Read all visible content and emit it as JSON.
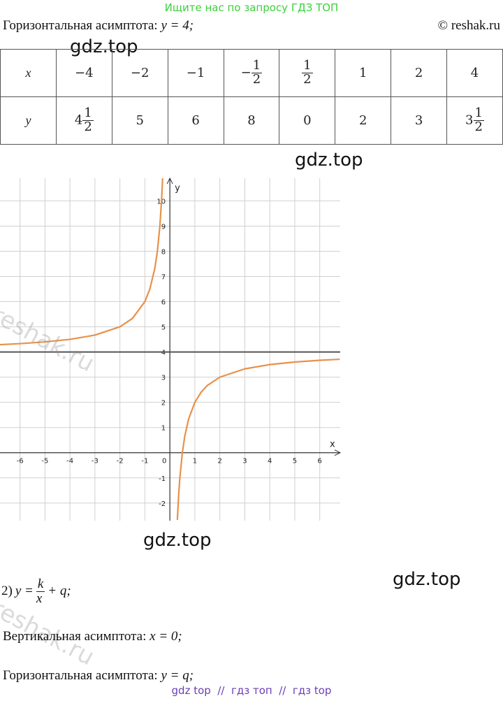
{
  "banner": "Ищите нас по запросу ГДЗ ТОП",
  "copyright": "© reshak.ru",
  "line1": {
    "label": "Горизонтальная асимптота:",
    "math": "y = 4;"
  },
  "watermarks": [
    "gdz.top",
    "gdz.top",
    "gdz.top",
    "gdz.top",
    "reshak.ru",
    "reshak.ru"
  ],
  "table": {
    "rows": [
      [
        "x",
        "−4",
        "−2",
        "−1",
        {
          "sign": "−",
          "num": "1",
          "den": "2"
        },
        {
          "num": "1",
          "den": "2"
        },
        "1",
        "2",
        "4"
      ],
      [
        "y",
        {
          "whole": "4",
          "num": "1",
          "den": "2"
        },
        "5",
        "6",
        "8",
        "0",
        "2",
        "3",
        {
          "whole": "3",
          "num": "1",
          "den": "2"
        }
      ]
    ]
  },
  "chart_data": {
    "type": "line",
    "xlabel": "x",
    "ylabel": "y",
    "x": [
      -6.8,
      -6,
      -5,
      -4,
      -3,
      -2,
      -1.5,
      -1,
      -0.8,
      -0.6,
      -0.5,
      -0.4,
      -0.33,
      -0.29,
      null,
      0.3,
      0.35,
      0.4,
      0.5,
      0.6,
      0.75,
      1,
      1.25,
      1.5,
      2,
      3,
      4,
      5,
      6,
      6.8
    ],
    "series": [
      {
        "color": "#e8914a",
        "values": [
          4.29,
          4.33,
          4.4,
          4.5,
          4.67,
          5,
          5.33,
          6,
          6.5,
          7.33,
          8,
          9,
          10.06,
          10.9,
          null,
          -2.67,
          -1.71,
          -1,
          0,
          0.67,
          1.33,
          2,
          2.4,
          2.67,
          3,
          3.33,
          3.5,
          3.6,
          3.67,
          3.71
        ]
      }
    ],
    "asymptote": 4,
    "xlim": [
      -6.8,
      6.82
    ],
    "ylim": [
      -2.7,
      10.9
    ],
    "xticks": [
      -6,
      -5,
      -4,
      -3,
      -2,
      -1,
      0,
      1,
      2,
      3,
      4,
      5,
      6
    ],
    "yticks": [
      -2,
      -1,
      1,
      2,
      3,
      4,
      5,
      6,
      7,
      8,
      9,
      10
    ],
    "grid": true
  },
  "item": {
    "number": "2)",
    "lhs": "y =",
    "num": "k",
    "den": "x",
    "rest": "+ q;"
  },
  "line2": {
    "label": "Вертикальная асимптота:",
    "math": "x = 0;"
  },
  "line3": {
    "label": "Горизонтальная асимптота:",
    "math": "y = q;"
  },
  "footer": "gdz top  //  гдз топ  //  гдз top"
}
